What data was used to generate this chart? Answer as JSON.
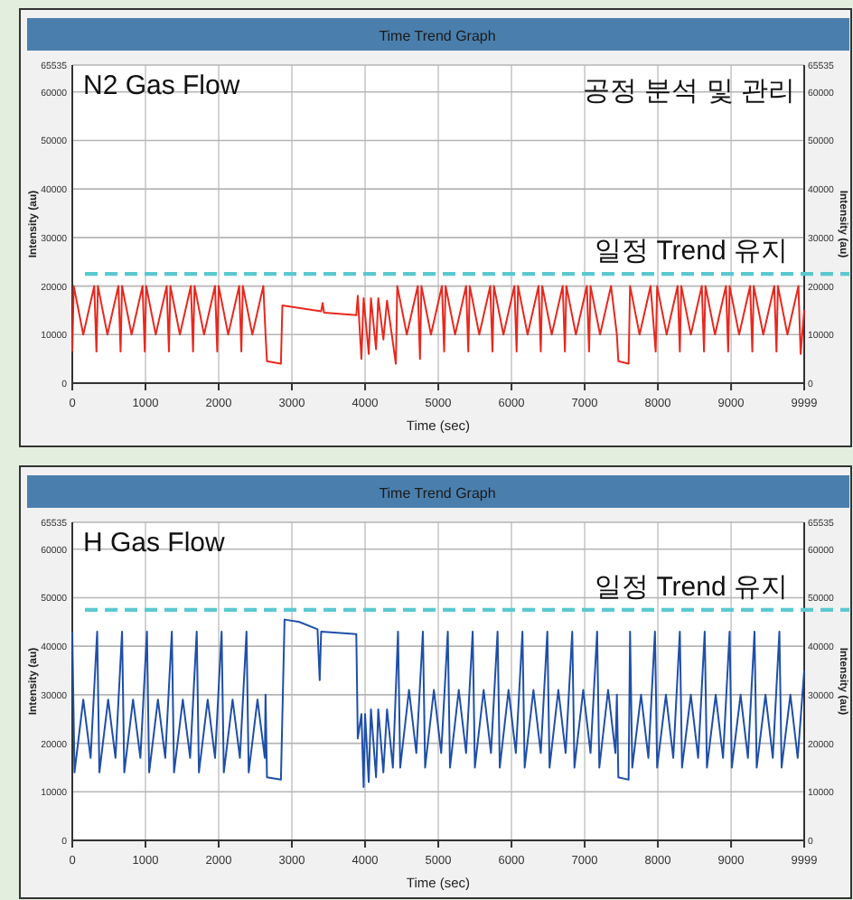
{
  "chart_data": [
    {
      "type": "line",
      "title": "Time Trend Graph",
      "xlabel": "Time (sec)",
      "ylabel": "Intensity (au)",
      "y2label": "Intensity (au)",
      "annotations": [
        "N2 Gas Flow",
        "공정 분석 및 관리"
      ],
      "xlim": [
        0,
        9999
      ],
      "xticks": [
        0,
        1000,
        2000,
        3000,
        4000,
        5000,
        6000,
        7000,
        8000,
        9000,
        9999
      ],
      "ylim": [
        0,
        65535
      ],
      "yticks": [
        0,
        10000,
        20000,
        30000,
        40000,
        50000,
        60000,
        65535
      ],
      "y2lim": [
        0,
        65535
      ],
      "y2ticks": [
        0,
        10000,
        20000,
        30000,
        40000,
        50000,
        60000,
        65535
      ],
      "grid": true,
      "line_style": "solid",
      "ref_lines": [
        {
          "axis": "y",
          "value": 22500,
          "label": "일정 Trend 유지",
          "color": "#5bc8d0",
          "line_style": "dashed"
        }
      ],
      "x": [
        0,
        20,
        150,
        300,
        330,
        350,
        480,
        630,
        660,
        680,
        810,
        960,
        990,
        1010,
        1140,
        1290,
        1320,
        1340,
        1470,
        1620,
        1650,
        1670,
        1800,
        1950,
        1980,
        2000,
        2130,
        2280,
        2310,
        2330,
        2460,
        2610,
        2640,
        2660,
        2850,
        2870,
        3400,
        3420,
        3440,
        3880,
        3900,
        3950,
        3980,
        4050,
        4080,
        4150,
        4180,
        4250,
        4300,
        4420,
        4440,
        4570,
        4720,
        4750,
        4770,
        4900,
        5050,
        5080,
        5100,
        5230,
        5380,
        5410,
        5430,
        5560,
        5710,
        5740,
        5760,
        5890,
        6040,
        6070,
        6090,
        6220,
        6370,
        6400,
        6420,
        6550,
        6700,
        6730,
        6750,
        6880,
        7030,
        7060,
        7080,
        7210,
        7360,
        7440,
        7460,
        7600,
        7620,
        7750,
        7900,
        7970,
        7990,
        8120,
        8270,
        8300,
        8320,
        8450,
        8600,
        8630,
        8650,
        8780,
        8930,
        8960,
        8980,
        9110,
        9260,
        9290,
        9310,
        9440,
        9590,
        9620,
        9640,
        9770,
        9920,
        9950,
        9999
      ],
      "series": [
        {
          "color": "#e8281e",
          "values": [
            6500,
            20000,
            10000,
            20000,
            6500,
            20000,
            10000,
            20000,
            6500,
            20000,
            10000,
            20000,
            6500,
            20000,
            10000,
            20000,
            6500,
            20000,
            10000,
            20000,
            6500,
            20000,
            10000,
            20000,
            6500,
            20000,
            10000,
            20000,
            6500,
            20000,
            10000,
            20000,
            10000,
            4500,
            4000,
            16000,
            14800,
            16500,
            14500,
            14000,
            18000,
            5000,
            17500,
            6000,
            17500,
            7000,
            17500,
            9000,
            17000,
            4000,
            20000,
            10000,
            20000,
            5000,
            20000,
            10000,
            20000,
            6500,
            20000,
            10000,
            20000,
            6500,
            20000,
            10000,
            20000,
            6500,
            20000,
            10000,
            20000,
            6500,
            20000,
            10000,
            20000,
            6500,
            20000,
            10000,
            20000,
            6500,
            20000,
            10000,
            20000,
            6500,
            20000,
            10000,
            20000,
            10000,
            4500,
            4000,
            20000,
            10000,
            20000,
            6500,
            20000,
            10000,
            20000,
            6500,
            20000,
            10000,
            20000,
            6500,
            20000,
            10000,
            20000,
            6500,
            20000,
            10000,
            20000,
            6500,
            20000,
            10000,
            20000,
            6500,
            20000,
            10000,
            20000,
            6000,
            15000
          ]
        }
      ]
    },
    {
      "type": "line",
      "title": "Time Trend Graph",
      "xlabel": "Time (sec)",
      "ylabel": "Intensity (au)",
      "y2label": "Intensity (au)",
      "annotations": [
        "H Gas Flow"
      ],
      "xlim": [
        0,
        9999
      ],
      "xticks": [
        0,
        1000,
        2000,
        3000,
        4000,
        5000,
        6000,
        7000,
        8000,
        9000,
        9999
      ],
      "ylim": [
        0,
        65535
      ],
      "yticks": [
        0,
        10000,
        20000,
        30000,
        40000,
        50000,
        60000,
        65535
      ],
      "y2lim": [
        0,
        65535
      ],
      "y2ticks": [
        0,
        10000,
        20000,
        30000,
        40000,
        50000,
        60000,
        65535
      ],
      "grid": true,
      "line_style": "solid",
      "ref_lines": [
        {
          "axis": "y",
          "value": 47500,
          "label": "일정 Trend 유지",
          "color": "#5bc8d0",
          "line_style": "dashed"
        }
      ],
      "x": [
        0,
        30,
        150,
        250,
        340,
        370,
        490,
        590,
        680,
        710,
        830,
        930,
        1020,
        1050,
        1170,
        1270,
        1360,
        1390,
        1510,
        1610,
        1700,
        1730,
        1850,
        1950,
        2040,
        2070,
        2190,
        2290,
        2380,
        2410,
        2530,
        2630,
        2640,
        2660,
        2850,
        2900,
        3100,
        3350,
        3380,
        3400,
        3880,
        3900,
        3950,
        3980,
        4000,
        4050,
        4080,
        4150,
        4180,
        4250,
        4300,
        4380,
        4450,
        4480,
        4600,
        4700,
        4790,
        4820,
        4940,
        5040,
        5130,
        5160,
        5280,
        5380,
        5470,
        5500,
        5620,
        5720,
        5810,
        5840,
        5960,
        6060,
        6150,
        6180,
        6300,
        6400,
        6490,
        6520,
        6640,
        6740,
        6830,
        6860,
        6980,
        7080,
        7170,
        7200,
        7320,
        7420,
        7440,
        7460,
        7600,
        7620,
        7650,
        7770,
        7870,
        7960,
        7990,
        8110,
        8210,
        8300,
        8330,
        8450,
        8550,
        8640,
        8670,
        8790,
        8890,
        8980,
        9010,
        9130,
        9230,
        9320,
        9350,
        9470,
        9570,
        9660,
        9690,
        9810,
        9910,
        9999
      ],
      "series": [
        {
          "color": "#1f4fa8",
          "values": [
            43000,
            14000,
            29000,
            17000,
            43000,
            14000,
            29000,
            17000,
            43000,
            14000,
            29000,
            17000,
            43000,
            14000,
            29000,
            17000,
            43000,
            14000,
            29000,
            17000,
            43000,
            14000,
            29000,
            17000,
            43000,
            14000,
            29000,
            17000,
            43000,
            14000,
            29000,
            17000,
            30000,
            13000,
            12500,
            45500,
            45000,
            43500,
            33000,
            43000,
            42500,
            21000,
            26000,
            11000,
            26000,
            12000,
            27000,
            13000,
            27000,
            14000,
            27000,
            15000,
            43000,
            15000,
            31000,
            18000,
            43000,
            15000,
            31000,
            18000,
            43000,
            15000,
            31000,
            18000,
            43000,
            15000,
            31000,
            18000,
            43000,
            15000,
            31000,
            18000,
            43000,
            15000,
            31000,
            18000,
            43000,
            15000,
            31000,
            18000,
            43000,
            15000,
            31000,
            18000,
            43000,
            15000,
            31000,
            18000,
            30000,
            13000,
            12500,
            43000,
            15000,
            30000,
            17000,
            43000,
            15000,
            30000,
            17000,
            43000,
            15000,
            30000,
            17000,
            43000,
            15000,
            30000,
            17000,
            43000,
            15000,
            30000,
            17000,
            43000,
            15000,
            30000,
            17000,
            43000,
            15000,
            30000,
            17000,
            35000
          ]
        }
      ]
    }
  ]
}
